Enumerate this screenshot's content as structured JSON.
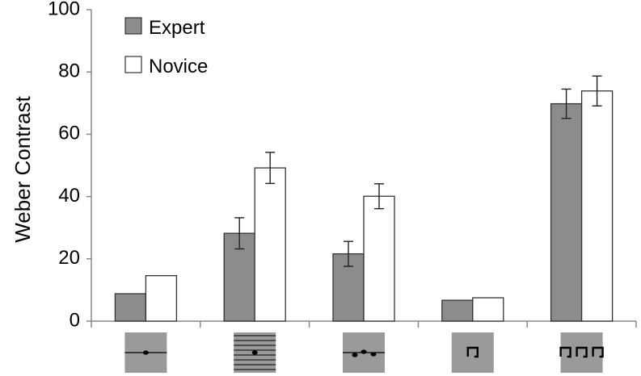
{
  "chart_data": {
    "type": "bar",
    "ylabel": "Weber Contrast",
    "ylim": [
      0,
      100
    ],
    "yticks": [
      "0",
      "20",
      "40",
      "60",
      "80",
      "100"
    ],
    "categories": [
      "single note on line",
      "note on staff lines",
      "three notes on line",
      "single square",
      "three squares"
    ],
    "category_icons": [
      "note-single-icon",
      "note-staff-icon",
      "note-triple-icon",
      "square-single-icon",
      "square-triple-icon"
    ],
    "series": [
      {
        "name": "Expert",
        "color": "#8c8c8c",
        "values": [
          8.8,
          28.2,
          21.6,
          6.7,
          69.8
        ],
        "errors": [
          null,
          5.0,
          4.0,
          null,
          4.7
        ]
      },
      {
        "name": "Novice",
        "color": "#ffffff",
        "values": [
          14.6,
          49.2,
          40.1,
          7.5,
          73.9
        ],
        "errors": [
          null,
          5.0,
          4.0,
          null,
          4.8
        ]
      }
    ],
    "legend": {
      "position": "top-left",
      "labels": [
        "Expert",
        "Novice"
      ]
    },
    "grid": false
  }
}
